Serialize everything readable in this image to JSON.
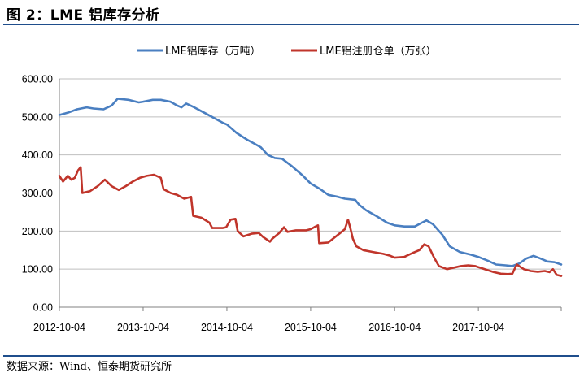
{
  "header": {
    "title": "图 2：LME 铝库存分析"
  },
  "footer": {
    "source": "数据来源：Wind、恒泰期货研究所"
  },
  "colors": {
    "accent_rule": "#1f4e8c"
  },
  "chart_data": {
    "type": "line",
    "title": "",
    "xlabel": "",
    "ylabel": "",
    "ylim": [
      0,
      600
    ],
    "yticks": [
      "0.00",
      "100.00",
      "200.00",
      "300.00",
      "400.00",
      "500.00",
      "600.00"
    ],
    "xticks": [
      "2012-10-04",
      "2013-10-04",
      "2014-10-04",
      "2015-10-04",
      "2016-10-04",
      "2017-10-04"
    ],
    "xlim": [
      "2012-10-04",
      "2018-09-30"
    ],
    "grid": "horizontal",
    "legend_position": "top-center",
    "series": [
      {
        "name": "LME铝库存（万吨）",
        "color": "#4a7fc1",
        "points": [
          [
            "2012-10-04",
            505
          ],
          [
            "2012-11-15",
            512
          ],
          [
            "2012-12-20",
            520
          ],
          [
            "2013-01-31",
            525
          ],
          [
            "2013-03-01",
            522
          ],
          [
            "2013-04-15",
            520
          ],
          [
            "2013-05-20",
            530
          ],
          [
            "2013-06-15",
            548
          ],
          [
            "2013-08-01",
            545
          ],
          [
            "2013-09-15",
            538
          ],
          [
            "2013-10-04",
            540
          ],
          [
            "2013-11-15",
            545
          ],
          [
            "2013-12-20",
            545
          ],
          [
            "2014-01-31",
            540
          ],
          [
            "2014-03-01",
            530
          ],
          [
            "2014-03-20",
            525
          ],
          [
            "2014-04-10",
            535
          ],
          [
            "2014-05-15",
            525
          ],
          [
            "2014-06-15",
            515
          ],
          [
            "2014-07-31",
            500
          ],
          [
            "2014-09-15",
            485
          ],
          [
            "2014-10-04",
            480
          ],
          [
            "2014-11-15",
            458
          ],
          [
            "2014-12-31",
            440
          ],
          [
            "2015-01-31",
            430
          ],
          [
            "2015-03-01",
            420
          ],
          [
            "2015-04-01",
            400
          ],
          [
            "2015-05-01",
            392
          ],
          [
            "2015-06-01",
            390
          ],
          [
            "2015-07-15",
            370
          ],
          [
            "2015-09-01",
            345
          ],
          [
            "2015-10-04",
            325
          ],
          [
            "2015-11-15",
            310
          ],
          [
            "2015-12-20",
            295
          ],
          [
            "2016-01-31",
            290
          ],
          [
            "2016-03-01",
            285
          ],
          [
            "2016-04-15",
            282
          ],
          [
            "2016-05-01",
            270
          ],
          [
            "2016-06-01",
            255
          ],
          [
            "2016-07-15",
            240
          ],
          [
            "2016-09-01",
            222
          ],
          [
            "2016-10-04",
            215
          ],
          [
            "2016-11-15",
            212
          ],
          [
            "2016-12-31",
            212
          ],
          [
            "2017-01-31",
            222
          ],
          [
            "2017-02-20",
            228
          ],
          [
            "2017-03-20",
            218
          ],
          [
            "2017-04-30",
            190
          ],
          [
            "2017-06-01",
            160
          ],
          [
            "2017-07-15",
            145
          ],
          [
            "2017-09-01",
            138
          ],
          [
            "2017-10-04",
            132
          ],
          [
            "2017-11-15",
            122
          ],
          [
            "2017-12-20",
            112
          ],
          [
            "2018-01-31",
            110
          ],
          [
            "2018-03-01",
            108
          ],
          [
            "2018-04-01",
            115
          ],
          [
            "2018-05-01",
            128
          ],
          [
            "2018-06-01",
            135
          ],
          [
            "2018-07-01",
            128
          ],
          [
            "2018-08-01",
            120
          ],
          [
            "2018-09-01",
            118
          ],
          [
            "2018-09-30",
            112
          ]
        ]
      },
      {
        "name": "LME铝注册仓单（万张）",
        "color": "#c0352b",
        "points": [
          [
            "2012-10-04",
            345
          ],
          [
            "2012-10-20",
            330
          ],
          [
            "2012-11-10",
            345
          ],
          [
            "2012-11-25",
            335
          ],
          [
            "2012-12-10",
            340
          ],
          [
            "2012-12-25",
            360
          ],
          [
            "2013-01-05",
            368
          ],
          [
            "2013-01-12",
            300
          ],
          [
            "2013-02-15",
            305
          ],
          [
            "2013-03-20",
            318
          ],
          [
            "2013-04-20",
            335
          ],
          [
            "2013-05-20",
            318
          ],
          [
            "2013-06-20",
            308
          ],
          [
            "2013-07-20",
            318
          ],
          [
            "2013-08-20",
            330
          ],
          [
            "2013-09-20",
            340
          ],
          [
            "2013-10-20",
            345
          ],
          [
            "2013-11-20",
            348
          ],
          [
            "2013-12-20",
            340
          ],
          [
            "2014-01-01",
            310
          ],
          [
            "2014-02-01",
            300
          ],
          [
            "2014-03-01",
            295
          ],
          [
            "2014-04-01",
            285
          ],
          [
            "2014-05-01",
            290
          ],
          [
            "2014-05-10",
            240
          ],
          [
            "2014-06-15",
            235
          ],
          [
            "2014-07-20",
            222
          ],
          [
            "2014-08-01",
            208
          ],
          [
            "2014-09-15",
            208
          ],
          [
            "2014-10-01",
            210
          ],
          [
            "2014-10-20",
            230
          ],
          [
            "2014-11-10",
            232
          ],
          [
            "2014-11-20",
            200
          ],
          [
            "2014-12-15",
            186
          ],
          [
            "2015-01-20",
            193
          ],
          [
            "2015-02-20",
            195
          ],
          [
            "2015-03-10",
            185
          ],
          [
            "2015-04-10",
            172
          ],
          [
            "2015-04-20",
            180
          ],
          [
            "2015-05-10",
            190
          ],
          [
            "2015-05-20",
            195
          ],
          [
            "2015-06-10",
            210
          ],
          [
            "2015-06-25",
            198
          ],
          [
            "2015-08-01",
            202
          ],
          [
            "2015-09-15",
            202
          ],
          [
            "2015-10-04",
            205
          ],
          [
            "2015-10-20",
            210
          ],
          [
            "2015-11-05",
            215
          ],
          [
            "2015-11-10",
            168
          ],
          [
            "2015-12-20",
            170
          ],
          [
            "2016-01-20",
            185
          ],
          [
            "2016-02-10",
            195
          ],
          [
            "2016-03-01",
            205
          ],
          [
            "2016-03-15",
            230
          ],
          [
            "2016-03-25",
            208
          ],
          [
            "2016-04-05",
            180
          ],
          [
            "2016-04-20",
            160
          ],
          [
            "2016-05-20",
            150
          ],
          [
            "2016-07-01",
            145
          ],
          [
            "2016-08-15",
            140
          ],
          [
            "2016-09-15",
            135
          ],
          [
            "2016-10-04",
            130
          ],
          [
            "2016-11-15",
            132
          ],
          [
            "2016-12-20",
            142
          ],
          [
            "2017-01-20",
            150
          ],
          [
            "2017-02-10",
            165
          ],
          [
            "2017-03-01",
            160
          ],
          [
            "2017-03-25",
            130
          ],
          [
            "2017-04-15",
            108
          ],
          [
            "2017-05-20",
            100
          ],
          [
            "2017-06-20",
            104
          ],
          [
            "2017-07-20",
            108
          ],
          [
            "2017-08-20",
            110
          ],
          [
            "2017-09-20",
            108
          ],
          [
            "2017-10-04",
            105
          ],
          [
            "2017-11-10",
            98
          ],
          [
            "2017-12-10",
            92
          ],
          [
            "2018-01-10",
            88
          ],
          [
            "2018-02-10",
            87
          ],
          [
            "2018-03-01",
            88
          ],
          [
            "2018-03-20",
            112
          ],
          [
            "2018-04-20",
            100
          ],
          [
            "2018-05-20",
            95
          ],
          [
            "2018-06-20",
            93
          ],
          [
            "2018-07-20",
            95
          ],
          [
            "2018-08-10",
            92
          ],
          [
            "2018-08-25",
            100
          ],
          [
            "2018-09-10",
            85
          ],
          [
            "2018-09-30",
            82
          ]
        ]
      }
    ]
  }
}
